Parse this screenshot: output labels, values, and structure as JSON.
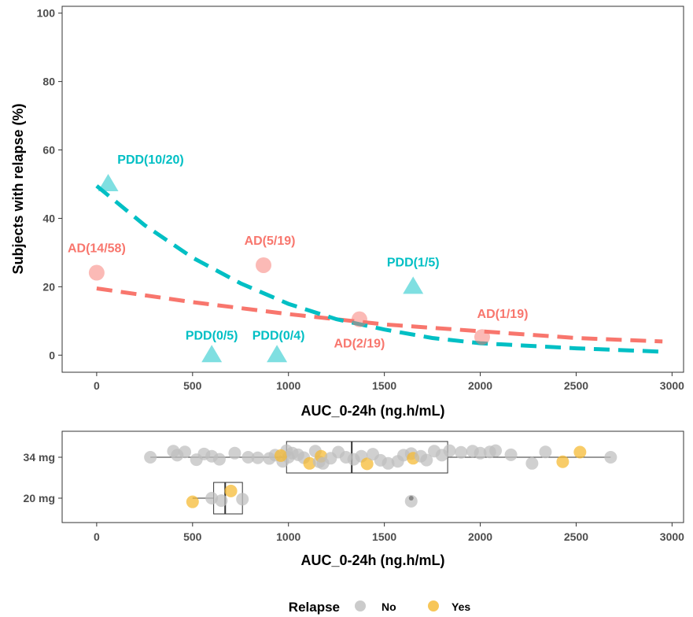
{
  "colors": {
    "AD": "#F8766D",
    "PDD": "#00BFC4",
    "relapse_no": "#BEBEBE",
    "relapse_yes": "#F5B82E"
  },
  "chart_data": [
    {
      "type": "scatter",
      "xlabel": "AUC_0-24h (ng.h/mL)",
      "ylabel": "Subjects with relapse (%)",
      "xlim": [
        -180,
        3060
      ],
      "ylim": [
        -5,
        102
      ],
      "x_ticks": [
        "0",
        "500",
        "1000",
        "1500",
        "2000",
        "2500",
        "3000"
      ],
      "y_ticks": [
        "0",
        "20",
        "40",
        "60",
        "80",
        "100"
      ],
      "grid": false,
      "series": [
        {
          "name": "AD",
          "marker": "circle",
          "points": [
            {
              "x": 0,
              "y": 24.1,
              "label": "AD(14/58)"
            },
            {
              "x": 870,
              "y": 26.3,
              "label": "AD(5/19)"
            },
            {
              "x": 1370,
              "y": 10.5,
              "label": "AD(2/19)"
            },
            {
              "x": 2010,
              "y": 5.3,
              "label": "AD(1/19)"
            }
          ],
          "fit": {
            "x": [
              0,
              500,
              1000,
              1500,
              2000,
              2500,
              2950
            ],
            "y": [
              19.5,
              15.5,
              12,
              9,
              7,
              5,
              4
            ]
          }
        },
        {
          "name": "PDD",
          "marker": "triangle",
          "points": [
            {
              "x": 60,
              "y": 50,
              "label": "PDD(10/20)"
            },
            {
              "x": 600,
              "y": 0,
              "label": "PDD(0/5)"
            },
            {
              "x": 940,
              "y": 0,
              "label": "PDD(0/4)"
            },
            {
              "x": 1650,
              "y": 20,
              "label": "PDD(1/5)"
            }
          ],
          "fit": {
            "x": [
              0,
              250,
              500,
              750,
              1000,
              1250,
              1500,
              1750,
              2000,
              2500,
              2950
            ],
            "y": [
              49.5,
              38,
              28.5,
              21,
              15,
              10.5,
              7.5,
              5,
              3.5,
              2,
              1
            ]
          }
        }
      ]
    },
    {
      "type": "scatter",
      "xlabel": "AUC_0-24h (ng.h/mL)",
      "xlim": [
        -180,
        3060
      ],
      "x_ticks": [
        "0",
        "500",
        "1000",
        "1500",
        "2000",
        "2500",
        "3000"
      ],
      "categories": [
        "34 mg",
        "20 mg"
      ],
      "boxplots": [
        {
          "category": "34 mg",
          "whisker_low": 280,
          "q1": 990,
          "median": 1330,
          "q3": 1830,
          "whisker_high": 2680
        },
        {
          "category": "20 mg",
          "whisker_low": 500,
          "q1": 610,
          "median": 670,
          "q3": 760,
          "whisker_high": 760,
          "outliers": [
            1640
          ]
        }
      ],
      "legend": {
        "title": "Relapse",
        "entries": [
          "No",
          "Yes"
        ],
        "position": "bottom"
      },
      "points": [
        {
          "cat": "34 mg",
          "x": 280,
          "j": 0.0,
          "r": "No"
        },
        {
          "cat": "34 mg",
          "x": 400,
          "j": 0.3,
          "r": "No"
        },
        {
          "cat": "34 mg",
          "x": 420,
          "j": 0.1,
          "r": "No"
        },
        {
          "cat": "34 mg",
          "x": 460,
          "j": 0.26,
          "r": "No"
        },
        {
          "cat": "34 mg",
          "x": 520,
          "j": -0.12,
          "r": "No"
        },
        {
          "cat": "34 mg",
          "x": 560,
          "j": 0.16,
          "r": "No"
        },
        {
          "cat": "34 mg",
          "x": 600,
          "j": 0.05,
          "r": "No"
        },
        {
          "cat": "34 mg",
          "x": 640,
          "j": -0.1,
          "r": "No"
        },
        {
          "cat": "34 mg",
          "x": 720,
          "j": 0.2,
          "r": "No"
        },
        {
          "cat": "34 mg",
          "x": 790,
          "j": 0.0,
          "r": "No"
        },
        {
          "cat": "34 mg",
          "x": 840,
          "j": -0.03,
          "r": "No"
        },
        {
          "cat": "34 mg",
          "x": 900,
          "j": -0.06,
          "r": "No"
        },
        {
          "cat": "34 mg",
          "x": 930,
          "j": 0.1,
          "r": "No"
        },
        {
          "cat": "34 mg",
          "x": 970,
          "j": -0.2,
          "r": "No"
        },
        {
          "cat": "34 mg",
          "x": 990,
          "j": 0.32,
          "r": "No"
        },
        {
          "cat": "34 mg",
          "x": 1000,
          "j": 0.0,
          "r": "No"
        },
        {
          "cat": "34 mg",
          "x": 960,
          "j": 0.08,
          "r": "Yes"
        },
        {
          "cat": "34 mg",
          "x": 1020,
          "j": 0.2,
          "r": "No"
        },
        {
          "cat": "34 mg",
          "x": 1050,
          "j": 0.12,
          "r": "No"
        },
        {
          "cat": "34 mg",
          "x": 1080,
          "j": -0.02,
          "r": "No"
        },
        {
          "cat": "34 mg",
          "x": 1110,
          "j": -0.3,
          "r": "Yes"
        },
        {
          "cat": "34 mg",
          "x": 1140,
          "j": 0.3,
          "r": "No"
        },
        {
          "cat": "34 mg",
          "x": 1160,
          "j": -0.22,
          "r": "No"
        },
        {
          "cat": "34 mg",
          "x": 1170,
          "j": 0.05,
          "r": "Yes"
        },
        {
          "cat": "34 mg",
          "x": 1180,
          "j": -0.3,
          "r": "No"
        },
        {
          "cat": "34 mg",
          "x": 1220,
          "j": -0.05,
          "r": "No"
        },
        {
          "cat": "34 mg",
          "x": 1260,
          "j": 0.25,
          "r": "No"
        },
        {
          "cat": "34 mg",
          "x": 1300,
          "j": 0.0,
          "r": "No"
        },
        {
          "cat": "34 mg",
          "x": 1340,
          "j": -0.1,
          "r": "No"
        },
        {
          "cat": "34 mg",
          "x": 1380,
          "j": 0.05,
          "r": "No"
        },
        {
          "cat": "34 mg",
          "x": 1410,
          "j": -0.32,
          "r": "Yes"
        },
        {
          "cat": "34 mg",
          "x": 1440,
          "j": 0.15,
          "r": "No"
        },
        {
          "cat": "34 mg",
          "x": 1480,
          "j": -0.15,
          "r": "No"
        },
        {
          "cat": "34 mg",
          "x": 1520,
          "j": -0.3,
          "r": "No"
        },
        {
          "cat": "34 mg",
          "x": 1570,
          "j": -0.2,
          "r": "No"
        },
        {
          "cat": "34 mg",
          "x": 1600,
          "j": 0.1,
          "r": "No"
        },
        {
          "cat": "34 mg",
          "x": 1640,
          "j": 0.18,
          "r": "No"
        },
        {
          "cat": "34 mg",
          "x": 1650,
          "j": -0.05,
          "r": "Yes"
        },
        {
          "cat": "34 mg",
          "x": 1690,
          "j": 0.05,
          "r": "No"
        },
        {
          "cat": "34 mg",
          "x": 1720,
          "j": -0.14,
          "r": "No"
        },
        {
          "cat": "34 mg",
          "x": 1760,
          "j": 0.3,
          "r": "No"
        },
        {
          "cat": "34 mg",
          "x": 1800,
          "j": 0.1,
          "r": "No"
        },
        {
          "cat": "34 mg",
          "x": 1840,
          "j": 0.32,
          "r": "No"
        },
        {
          "cat": "34 mg",
          "x": 1900,
          "j": 0.24,
          "r": "No"
        },
        {
          "cat": "34 mg",
          "x": 1960,
          "j": 0.3,
          "r": "No"
        },
        {
          "cat": "34 mg",
          "x": 2000,
          "j": 0.2,
          "r": "No"
        },
        {
          "cat": "34 mg",
          "x": 2050,
          "j": 0.26,
          "r": "No"
        },
        {
          "cat": "34 mg",
          "x": 2080,
          "j": 0.32,
          "r": "No"
        },
        {
          "cat": "34 mg",
          "x": 2160,
          "j": 0.12,
          "r": "No"
        },
        {
          "cat": "34 mg",
          "x": 2270,
          "j": -0.3,
          "r": "No"
        },
        {
          "cat": "34 mg",
          "x": 2340,
          "j": 0.26,
          "r": "No"
        },
        {
          "cat": "34 mg",
          "x": 2430,
          "j": -0.22,
          "r": "Yes"
        },
        {
          "cat": "34 mg",
          "x": 2520,
          "j": 0.25,
          "r": "Yes"
        },
        {
          "cat": "34 mg",
          "x": 2680,
          "j": 0.0,
          "r": "No"
        },
        {
          "cat": "20 mg",
          "x": 500,
          "j": -0.18,
          "r": "Yes"
        },
        {
          "cat": "20 mg",
          "x": 600,
          "j": 0.0,
          "r": "No"
        },
        {
          "cat": "20 mg",
          "x": 650,
          "j": -0.12,
          "r": "No"
        },
        {
          "cat": "20 mg",
          "x": 700,
          "j": 0.35,
          "r": "Yes"
        },
        {
          "cat": "20 mg",
          "x": 760,
          "j": -0.05,
          "r": "No"
        },
        {
          "cat": "20 mg",
          "x": 1640,
          "j": -0.15,
          "r": "No"
        }
      ]
    }
  ]
}
